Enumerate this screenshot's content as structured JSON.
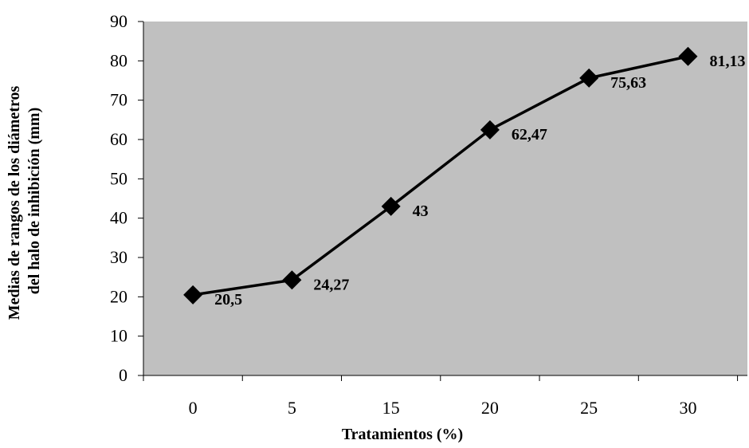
{
  "chart_data": {
    "type": "line",
    "categories": [
      "0",
      "5",
      "15",
      "20",
      "25",
      "30"
    ],
    "series": [
      {
        "values": [
          20.5,
          24.27,
          43,
          62.47,
          75.63,
          81.13
        ]
      }
    ],
    "data_labels": [
      "20,5",
      "24,27",
      "43",
      "62,47",
      "75,63",
      "81,13"
    ],
    "title": "",
    "xlabel": "Tratamientos (%)",
    "ylabel_lines": [
      "Medias de rangos de los diámetros",
      "del halo de inhibición (mm)"
    ],
    "ylim": [
      0,
      90
    ],
    "yticks": [
      0,
      10,
      20,
      30,
      40,
      50,
      60,
      70,
      80,
      90
    ],
    "grid": false,
    "marker": "diamond",
    "colors": {
      "plot_background": "#c0c0c0",
      "line": "#000000",
      "marker": "#000000"
    }
  }
}
